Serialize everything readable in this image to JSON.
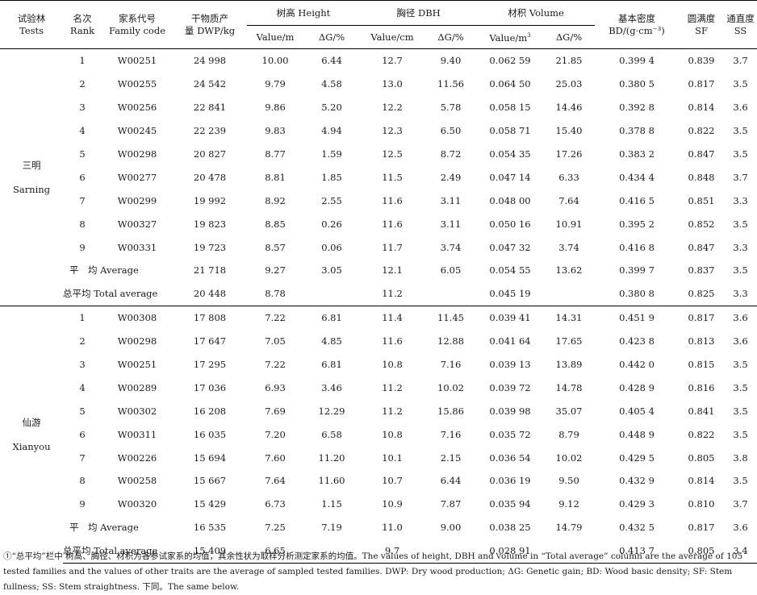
{
  "headers": {
    "tests": [
      "试验林",
      "Tests"
    ],
    "rank": [
      "名次",
      "Rank"
    ],
    "family_code": [
      "家系代号",
      "Family code"
    ],
    "dwp": [
      "干物质产",
      "量 DWP/kg"
    ],
    "height": "树高 Height",
    "dbh": "胸径 DBH",
    "volume": "材积 Volume",
    "bd": [
      "基本密度",
      "BD/(g·cm⁻³)"
    ],
    "sf": [
      "圆满度",
      "SF"
    ],
    "ss": [
      "通直度",
      "SS"
    ],
    "value_m": "Value/m",
    "value_cm": "Value/cm",
    "value_m3": "Value/m",
    "value_m3_sup": "3",
    "gain": "ΔG/%"
  },
  "sites": [
    {
      "name_cn": "三明",
      "name_en": "Sarning",
      "rows": [
        {
          "rank": "1",
          "code": "W00251",
          "dwp": "24 998",
          "h": "10.00",
          "hg": "6.44",
          "d": "12.7",
          "dg": "9.40",
          "v": "0.062 59",
          "vg": "21.85",
          "bd": "0.399 4",
          "sf": "0.839",
          "ss": "3.7"
        },
        {
          "rank": "2",
          "code": "W00255",
          "dwp": "24 542",
          "h": "9.79",
          "hg": "4.58",
          "d": "13.0",
          "dg": "11.56",
          "v": "0.064 50",
          "vg": "25.03",
          "bd": "0.380 5",
          "sf": "0.817",
          "ss": "3.5"
        },
        {
          "rank": "3",
          "code": "W00256",
          "dwp": "22 841",
          "h": "9.86",
          "hg": "5.20",
          "d": "12.2",
          "dg": "5.78",
          "v": "0.058 15",
          "vg": "14.46",
          "bd": "0.392 8",
          "sf": "0.814",
          "ss": "3.6"
        },
        {
          "rank": "4",
          "code": "W00245",
          "dwp": "22 239",
          "h": "9.83",
          "hg": "4.94",
          "d": "12.3",
          "dg": "6.50",
          "v": "0.058 71",
          "vg": "15.40",
          "bd": "0.378 8",
          "sf": "0.822",
          "ss": "3.5"
        },
        {
          "rank": "5",
          "code": "W00298",
          "dwp": "20 827",
          "h": "8.77",
          "hg": "1.59",
          "d": "12.5",
          "dg": "8.72",
          "v": "0.054 35",
          "vg": "17.26",
          "bd": "0.383 2",
          "sf": "0.847",
          "ss": "3.5"
        },
        {
          "rank": "6",
          "code": "W00277",
          "dwp": "20 478",
          "h": "8.81",
          "hg": "1.85",
          "d": "11.5",
          "dg": "2.49",
          "v": "0.047 14",
          "vg": "6.33",
          "bd": "0.434 4",
          "sf": "0.848",
          "ss": "3.7"
        },
        {
          "rank": "7",
          "code": "W00299",
          "dwp": "19 992",
          "h": "8.92",
          "hg": "2.55",
          "d": "11.6",
          "dg": "3.11",
          "v": "0.048 00",
          "vg": "7.64",
          "bd": "0.416 5",
          "sf": "0.851",
          "ss": "3.3"
        },
        {
          "rank": "8",
          "code": "W00327",
          "dwp": "19 823",
          "h": "8.85",
          "hg": "0.26",
          "d": "11.6",
          "dg": "3.11",
          "v": "0.050 16",
          "vg": "10.91",
          "bd": "0.395 2",
          "sf": "0.852",
          "ss": "3.5"
        },
        {
          "rank": "9",
          "code": "W00331",
          "dwp": "19 723",
          "h": "8.57",
          "hg": "0.06",
          "d": "11.7",
          "dg": "3.74",
          "v": "0.047 32",
          "vg": "3.74",
          "bd": "0.416 8",
          "sf": "0.847",
          "ss": "3.3"
        }
      ],
      "average": {
        "label": "平　均 Average",
        "dwp": "21 718",
        "h": "9.27",
        "hg": "3.05",
        "d": "12.1",
        "dg": "6.05",
        "v": "0.054 55",
        "vg": "13.62",
        "bd": "0.399 7",
        "sf": "0.837",
        "ss": "3.5"
      },
      "total": {
        "label": "总平均 Total average",
        "dwp": "20 448",
        "h": "8.78",
        "d": "11.2",
        "v": "0.045 19",
        "bd": "0.380 8",
        "sf": "0.825",
        "ss": "3.3"
      }
    },
    {
      "name_cn": "仙游",
      "name_en": "Xianyou",
      "rows": [
        {
          "rank": "1",
          "code": "W00308",
          "dwp": "17 808",
          "h": "7.22",
          "hg": "6.81",
          "d": "11.4",
          "dg": "11.45",
          "v": "0.039 41",
          "vg": "14.31",
          "bd": "0.451 9",
          "sf": "0.817",
          "ss": "3.6"
        },
        {
          "rank": "2",
          "code": "W00298",
          "dwp": "17 647",
          "h": "7.05",
          "hg": "4.85",
          "d": "11.6",
          "dg": "12.88",
          "v": "0.041 64",
          "vg": "17.65",
          "bd": "0.423 8",
          "sf": "0.813",
          "ss": "3.6"
        },
        {
          "rank": "3",
          "code": "W00251",
          "dwp": "17 295",
          "h": "7.22",
          "hg": "6.81",
          "d": "10.8",
          "dg": "7.16",
          "v": "0.039 13",
          "vg": "13.89",
          "bd": "0.442 0",
          "sf": "0.815",
          "ss": "3.5"
        },
        {
          "rank": "4",
          "code": "W00289",
          "dwp": "17 036",
          "h": "6.93",
          "hg": "3.46",
          "d": "11.2",
          "dg": "10.02",
          "v": "0.039 72",
          "vg": "14.78",
          "bd": "0.428 9",
          "sf": "0.816",
          "ss": "3.5"
        },
        {
          "rank": "5",
          "code": "W00302",
          "dwp": "16 208",
          "h": "7.69",
          "hg": "12.29",
          "d": "11.2",
          "dg": "15.86",
          "v": "0.039 98",
          "vg": "35.07",
          "bd": "0.405 4",
          "sf": "0.841",
          "ss": "3.5"
        },
        {
          "rank": "6",
          "code": "W00311",
          "dwp": "16 035",
          "h": "7.20",
          "hg": "6.58",
          "d": "10.8",
          "dg": "7.16",
          "v": "0.035 72",
          "vg": "8.79",
          "bd": "0.448 9",
          "sf": "0.822",
          "ss": "3.5"
        },
        {
          "rank": "7",
          "code": "W00226",
          "dwp": "15 694",
          "h": "7.60",
          "hg": "11.20",
          "d": "10.1",
          "dg": "2.15",
          "v": "0.036 54",
          "vg": "10.02",
          "bd": "0.429 5",
          "sf": "0.805",
          "ss": "3.8"
        },
        {
          "rank": "8",
          "code": "W00258",
          "dwp": "15 667",
          "h": "7.64",
          "hg": "11.60",
          "d": "10.7",
          "dg": "6.44",
          "v": "0.036 19",
          "vg": "9.50",
          "bd": "0.432 9",
          "sf": "0.814",
          "ss": "3.5"
        },
        {
          "rank": "9",
          "code": "W00320",
          "dwp": "15 429",
          "h": "6.73",
          "hg": "1.15",
          "d": "10.9",
          "dg": "7.87",
          "v": "0.035 94",
          "vg": "9.12",
          "bd": "0.429 3",
          "sf": "0.810",
          "ss": "3.7"
        }
      ],
      "average": {
        "label": "平　均 Average",
        "dwp": "16 535",
        "h": "7.25",
        "hg": "7.19",
        "d": "11.0",
        "dg": "9.00",
        "v": "0.038 25",
        "vg": "14.79",
        "bd": "0.432 5",
        "sf": "0.817",
        "ss": "3.6"
      },
      "total": {
        "label": "总平均 Total average",
        "dwp": "15 409",
        "h": "6.65",
        "d": "9.7",
        "v": "0.028 91",
        "bd": "0.413 7",
        "sf": "0.805",
        "ss": "3.4"
      }
    }
  ],
  "footnote": "①“总平均”栏中 树高、胸径、材积为各参试家系的均值，其余性状为取样分析测定家系的均值。The values of height, DBH and volume in “Total average” column are the average of 105 tested families and the values of other traits are the average of sampled tested families. DWP: Dry wood production; ΔG: Genetic gain; BD: Wood basic density; SF: Stem fullness; SS: Stem straightness. 下同。The same below."
}
